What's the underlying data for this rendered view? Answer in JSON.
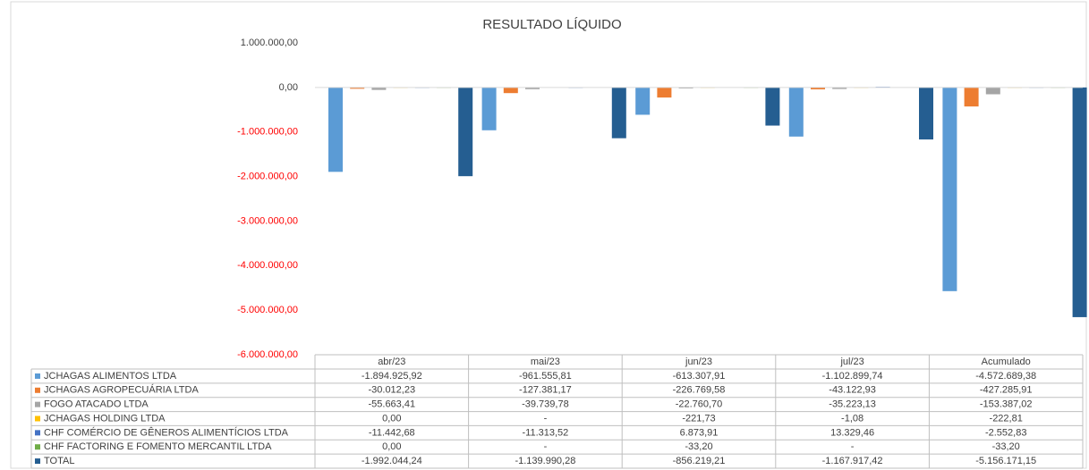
{
  "chart_data": {
    "type": "bar",
    "title": "RESULTADO LÍQUIDO",
    "categories": [
      "abr/23",
      "mai/23",
      "jun/23",
      "jul/23",
      "Acumulado"
    ],
    "ylim": [
      -6000000,
      1000000
    ],
    "yticks": [
      {
        "value": 1000000,
        "label": "1.000.000,00"
      },
      {
        "value": 0,
        "label": "0,00"
      },
      {
        "value": -1000000,
        "label": "-1.000.000,00"
      },
      {
        "value": -2000000,
        "label": "-2.000.000,00"
      },
      {
        "value": -3000000,
        "label": "-3.000.000,00"
      },
      {
        "value": -4000000,
        "label": "-4.000.000,00"
      },
      {
        "value": -5000000,
        "label": "-5.000.000,00"
      },
      {
        "value": -6000000,
        "label": "-6.000.000,00"
      }
    ],
    "negative_tick_color": "#ff0000",
    "grid": false,
    "series": [
      {
        "name": "JCHAGAS ALIMENTOS LTDA",
        "color": "#5b9bd5",
        "values": [
          -1894925.92,
          -961555.81,
          -613307.91,
          -1102899.74,
          -4572689.38
        ],
        "value_labels": [
          "-1.894.925,92",
          "-961.555,81",
          "-613.307,91",
          "-1.102.899,74",
          "-4.572.689,38"
        ]
      },
      {
        "name": "JCHAGAS AGROPECUÁRIA LTDA",
        "color": "#ed7d31",
        "values": [
          -30012.23,
          -127381.17,
          -226769.58,
          -43122.93,
          -427285.91
        ],
        "value_labels": [
          "-30.012,23",
          "-127.381,17",
          "-226.769,58",
          "-43.122,93",
          "-427.285,91"
        ]
      },
      {
        "name": "FOGO ATACADO LTDA",
        "color": "#a5a5a5",
        "values": [
          -55663.41,
          -39739.78,
          -22760.7,
          -35223.13,
          -153387.02
        ],
        "value_labels": [
          "-55.663,41",
          "-39.739,78",
          "-22.760,70",
          "-35.223,13",
          "-153.387,02"
        ]
      },
      {
        "name": "JCHAGAS HOLDING LTDA",
        "color": "#ffc000",
        "values": [
          0,
          null,
          -221.73,
          -1.08,
          -222.81
        ],
        "value_labels": [
          "0,00",
          "-",
          "-221,73",
          "-1,08",
          "-222,81"
        ]
      },
      {
        "name": "CHF COMÉRCIO DE GÊNEROS ALIMENTÍCIOS LTDA",
        "color": "#4472c4",
        "values": [
          -11442.68,
          -11313.52,
          6873.91,
          13329.46,
          -2552.83
        ],
        "value_labels": [
          "-11.442,68",
          "-11.313,52",
          "6.873,91",
          "13.329,46",
          "-2.552,83"
        ]
      },
      {
        "name": "CHF FACTORING E FOMENTO MERCANTIL LTDA",
        "color": "#70ad47",
        "values": [
          0,
          null,
          -33.2,
          null,
          -33.2
        ],
        "value_labels": [
          "0,00",
          "-",
          "-33,20",
          "-",
          "-33,20"
        ]
      },
      {
        "name": "TOTAL",
        "color": "#255e91",
        "values": [
          -1992044.24,
          -1139990.28,
          -856219.21,
          -1167917.42,
          -5156171.15
        ],
        "value_labels": [
          "-1.992.044,24",
          "-1.139.990,28",
          "-856.219,21",
          "-1.167.917,42",
          "-5.156.171,15"
        ]
      }
    ]
  }
}
